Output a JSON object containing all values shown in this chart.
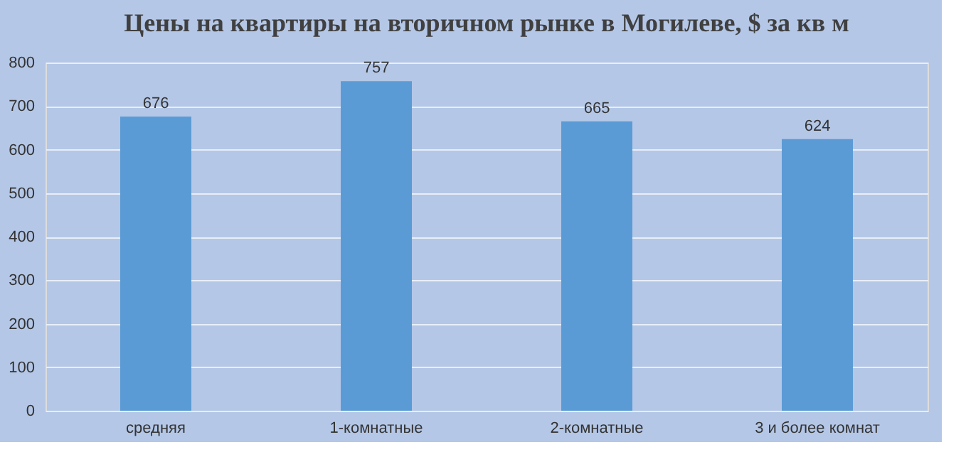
{
  "chart_data": {
    "type": "bar",
    "title": "Цены на квартиры на вторичном рынке в Могилеве, $ за кв м",
    "categories": [
      "средняя",
      "1-комнатные",
      "2-комнатные",
      "3 и более комнат"
    ],
    "values": [
      676,
      757,
      665,
      624
    ],
    "color": "#5b9bd5",
    "ylim": [
      0,
      800
    ],
    "yticks": [
      0,
      100,
      200,
      300,
      400,
      500,
      600,
      700,
      800
    ],
    "grid": "y",
    "data_labels": true
  }
}
